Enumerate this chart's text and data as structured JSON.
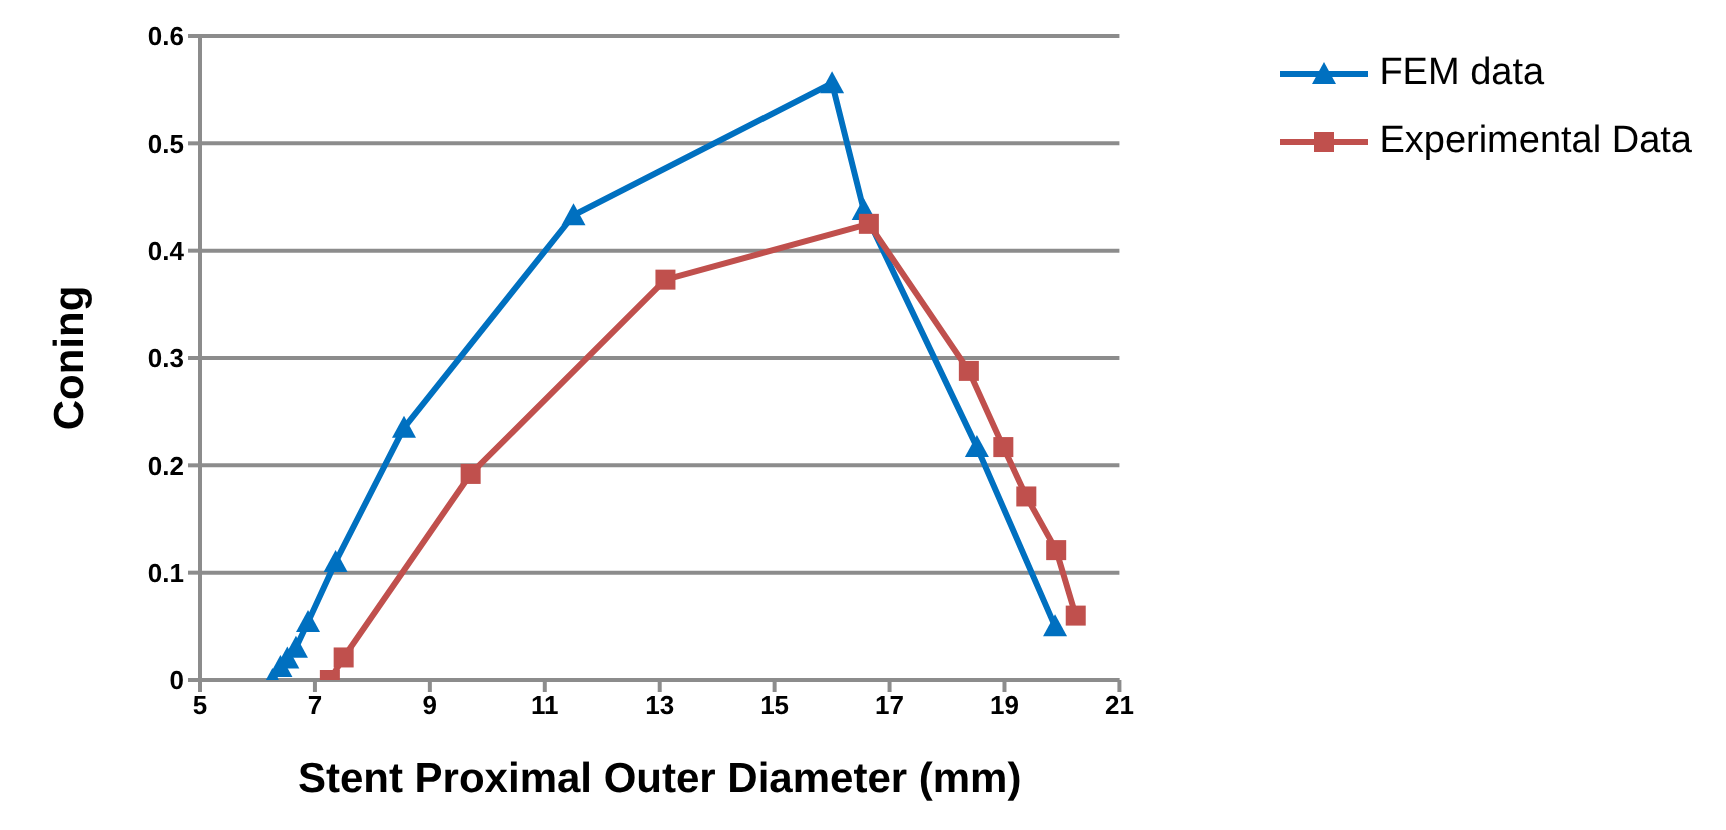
{
  "chart_data": {
    "type": "line",
    "xlabel": "Stent Proximal Outer Diameter (mm)",
    "ylabel": "Coning",
    "xlim": [
      5,
      21
    ],
    "xticks": [
      5,
      7,
      9,
      11,
      13,
      15,
      17,
      19,
      21
    ],
    "ylim": [
      0,
      0.6
    ],
    "yticks": [
      0,
      0.1,
      0.2,
      0.3,
      0.4,
      0.5,
      0.6
    ],
    "grid": "y",
    "legend": "top right",
    "series": [
      {
        "name": "FEM data",
        "color": "#0070c0",
        "marker": "triangle",
        "x": [
          6.26,
          6.4,
          6.52,
          6.67,
          6.88,
          7.36,
          8.55,
          11.5,
          16.0,
          16.55,
          18.52,
          19.88
        ],
        "values": [
          0,
          0.012,
          0.02,
          0.03,
          0.054,
          0.11,
          0.235,
          0.433,
          0.556,
          0.438,
          0.217,
          0.05
        ]
      },
      {
        "name": "Experimental Data",
        "color": "#c0504d",
        "marker": "square",
        "x": [
          7.26,
          7.5,
          9.71,
          13.1,
          16.64,
          18.38,
          18.98,
          19.38,
          19.9,
          20.24
        ],
        "values": [
          0,
          0.021,
          0.192,
          0.373,
          0.425,
          0.288,
          0.217,
          0.171,
          0.121,
          0.06
        ]
      }
    ]
  }
}
